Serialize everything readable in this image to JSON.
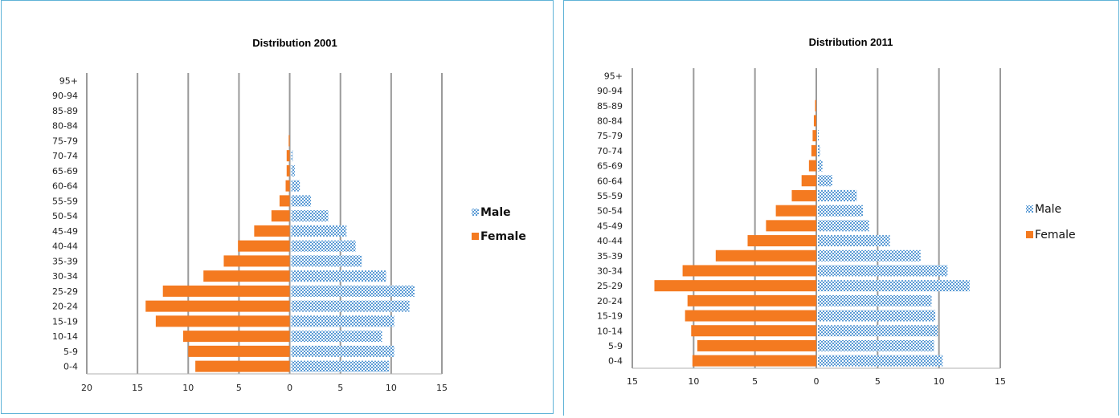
{
  "colors": {
    "male": "#5b9bd5",
    "female": "#f47a20",
    "grid": "#9a9a9a",
    "panel_border": "#5fb3d7"
  },
  "chart_data": [
    {
      "type": "bar",
      "orientation": "horizontal",
      "subtype": "population-pyramid",
      "title": "Distribution 2001",
      "categories": [
        "0-4",
        "5-9",
        "10-14",
        "15-19",
        "20-24",
        "25-29",
        "30-34",
        "35-39",
        "40-44",
        "45-49",
        "50-54",
        "55-59",
        "60-64",
        "65-69",
        "70-74",
        "75-79",
        "80-84",
        "85-89",
        "90-94",
        "95+"
      ],
      "xlim": [
        -20,
        15
      ],
      "xticks": [
        -20,
        -15,
        -10,
        -5,
        0,
        5,
        10,
        15
      ],
      "xtick_labels": [
        "20",
        "15",
        "10",
        "5",
        "0",
        "5",
        "10",
        "15"
      ],
      "grid": true,
      "legend_position": "right",
      "series": [
        {
          "name": "Male",
          "pattern": "checkered",
          "values": [
            9.8,
            10.3,
            9.1,
            10.3,
            11.8,
            12.3,
            9.5,
            7.1,
            6.5,
            5.6,
            3.8,
            2.1,
            1.0,
            0.5,
            0.3,
            0.1,
            0,
            0,
            0,
            0
          ]
        },
        {
          "name": "Female",
          "pattern": "solid",
          "values": [
            -9.3,
            -10.0,
            -10.5,
            -13.2,
            -14.2,
            -12.5,
            -8.5,
            -6.5,
            -5.1,
            -3.5,
            -1.8,
            -1.0,
            -0.4,
            -0.3,
            -0.3,
            -0.1,
            0,
            0,
            0,
            0
          ]
        }
      ]
    },
    {
      "type": "bar",
      "orientation": "horizontal",
      "subtype": "population-pyramid",
      "title": "Distribution 2011",
      "categories": [
        "0-4",
        "5-9",
        "10-14",
        "15-19",
        "20-24",
        "25-29",
        "30-34",
        "35-39",
        "40-44",
        "45-49",
        "50-54",
        "55-59",
        "60-64",
        "65-69",
        "70-74",
        "75-79",
        "80-84",
        "85-89",
        "90-94",
        "95+"
      ],
      "xlim": [
        -15,
        15
      ],
      "xticks": [
        -15,
        -10,
        -5,
        0,
        5,
        10,
        15
      ],
      "xtick_labels": [
        "15",
        "10",
        "5",
        "0",
        "5",
        "10",
        "15"
      ],
      "grid": true,
      "legend_position": "right",
      "series": [
        {
          "name": "Male",
          "pattern": "checkered",
          "values": [
            10.3,
            9.6,
            9.9,
            9.7,
            9.4,
            12.5,
            10.7,
            8.5,
            6.0,
            4.3,
            3.8,
            3.3,
            1.3,
            0.5,
            0.3,
            0.2,
            0.1,
            0,
            0,
            0
          ]
        },
        {
          "name": "Female",
          "pattern": "solid",
          "values": [
            -10.1,
            -9.7,
            -10.2,
            -10.7,
            -10.5,
            -13.2,
            -10.9,
            -8.2,
            -5.6,
            -4.1,
            -3.3,
            -2.0,
            -1.2,
            -0.6,
            -0.4,
            -0.3,
            -0.2,
            -0.1,
            0,
            0
          ]
        }
      ]
    }
  ]
}
